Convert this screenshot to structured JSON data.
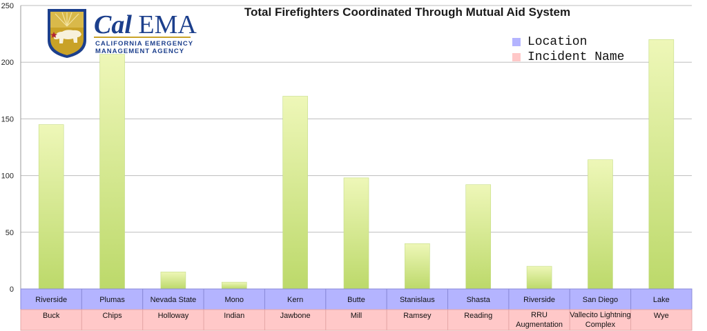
{
  "logo": {
    "name": "Cal EMA",
    "name_cal": "Cal",
    "name_ema": "EMA",
    "subtitle_line1": "CALIFORNIA EMERGENCY",
    "subtitle_line2": "MANAGEMENT AGENCY"
  },
  "colors": {
    "location_row": "#b4b4ff",
    "incident_row": "#ffc8c8",
    "bar_top": "#eef7b8",
    "bar_bottom": "#bcd96a",
    "brand_blue": "#1c3f8c",
    "brand_gold": "#c9a227"
  },
  "chart_data": {
    "type": "bar",
    "title": "Total Firefighters Coordinated Through Mutual Aid System",
    "ylim": [
      0,
      250
    ],
    "yticks": [
      0,
      50,
      100,
      150,
      200,
      250
    ],
    "grid": true,
    "legend_position": "top-right",
    "legend": [
      {
        "label": "Location",
        "color": "#b4b4ff"
      },
      {
        "label": "Incident Name",
        "color": "#ffc8c8"
      }
    ],
    "categories": [
      "Buck",
      "Chips",
      "Holloway",
      "Indian",
      "Jawbone",
      "Mill",
      "Ramsey",
      "Reading",
      "RRU Augmentation",
      "Vallecito Lightning Complex",
      "Wye"
    ],
    "locations": [
      "Riverside",
      "Plumas",
      "Nevada State",
      "Mono",
      "Kern",
      "Butte",
      "Stanislaus",
      "Shasta",
      "Riverside",
      "San Diego",
      "Lake"
    ],
    "incident_names": [
      [
        "Buck"
      ],
      [
        "Chips"
      ],
      [
        "Holloway"
      ],
      [
        "Indian"
      ],
      [
        "Jawbone"
      ],
      [
        "Mill"
      ],
      [
        "Ramsey"
      ],
      [
        "Reading"
      ],
      [
        "RRU",
        "Augmentation"
      ],
      [
        "Vallecito Lightning",
        "Complex"
      ],
      [
        "Wye"
      ]
    ],
    "values": [
      145,
      207,
      15,
      6,
      170,
      98,
      40,
      92,
      20,
      114,
      220
    ]
  }
}
